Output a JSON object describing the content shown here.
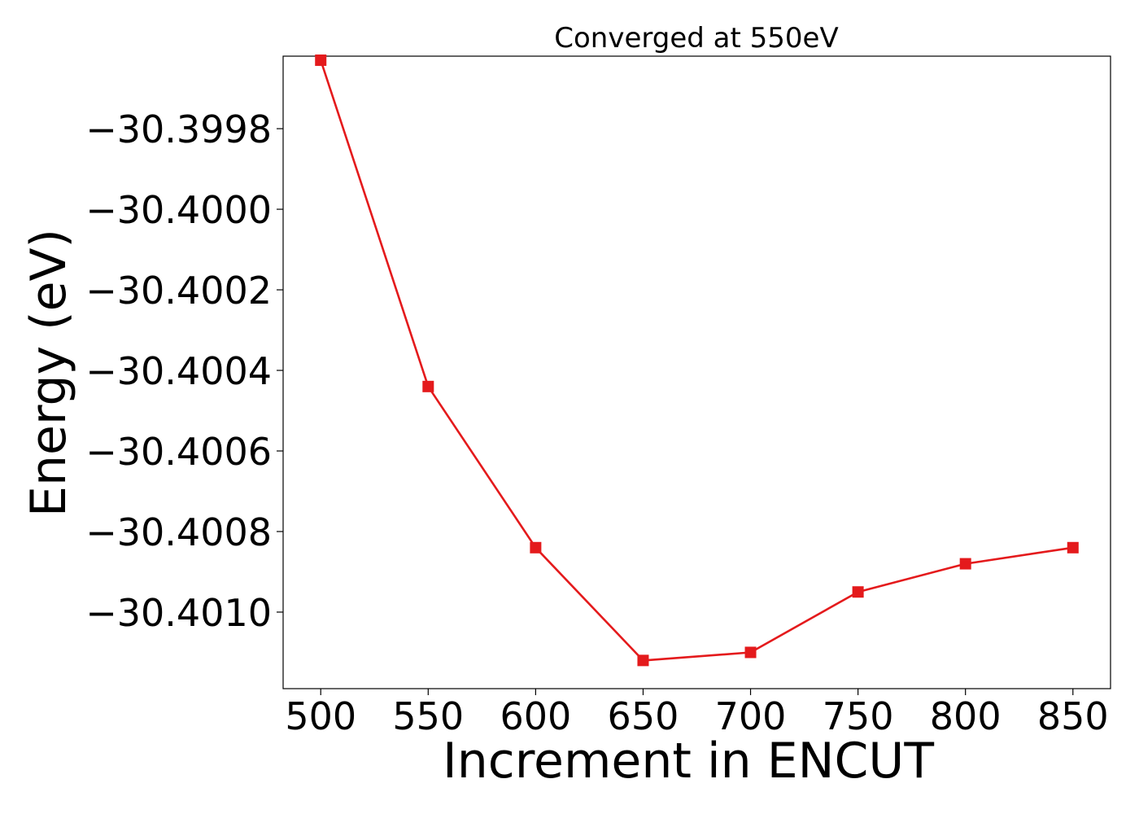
{
  "chart_data": {
    "type": "line",
    "title": "Converged at 550eV",
    "xlabel": "Increment in ENCUT",
    "ylabel": "Energy (eV)",
    "x": [
      500,
      550,
      600,
      650,
      700,
      750,
      800,
      850
    ],
    "series": [
      {
        "values": [
          -30.39963,
          -30.40044,
          -30.40084,
          -30.40112,
          -30.4011,
          -30.40095,
          -30.40088,
          -30.40084
        ],
        "color": "#e41a1c",
        "marker": "square"
      }
    ],
    "xticks": [
      500,
      550,
      600,
      650,
      700,
      750,
      800,
      850
    ],
    "xtick_labels": [
      "500",
      "550",
      "600",
      "650",
      "700",
      "750",
      "800",
      "850"
    ],
    "yticks": [
      -30.3998,
      -30.4,
      -30.4002,
      -30.4004,
      -30.4006,
      -30.4008,
      -30.401
    ],
    "ytick_labels": [
      "−30.3998",
      "−30.4000",
      "−30.4002",
      "−30.4004",
      "−30.4006",
      "−30.4008",
      "−30.4010"
    ],
    "xlim": [
      482.5,
      867.5
    ],
    "ylim": [
      -30.40119,
      -30.39962
    ],
    "grid": false,
    "legend": "none"
  }
}
